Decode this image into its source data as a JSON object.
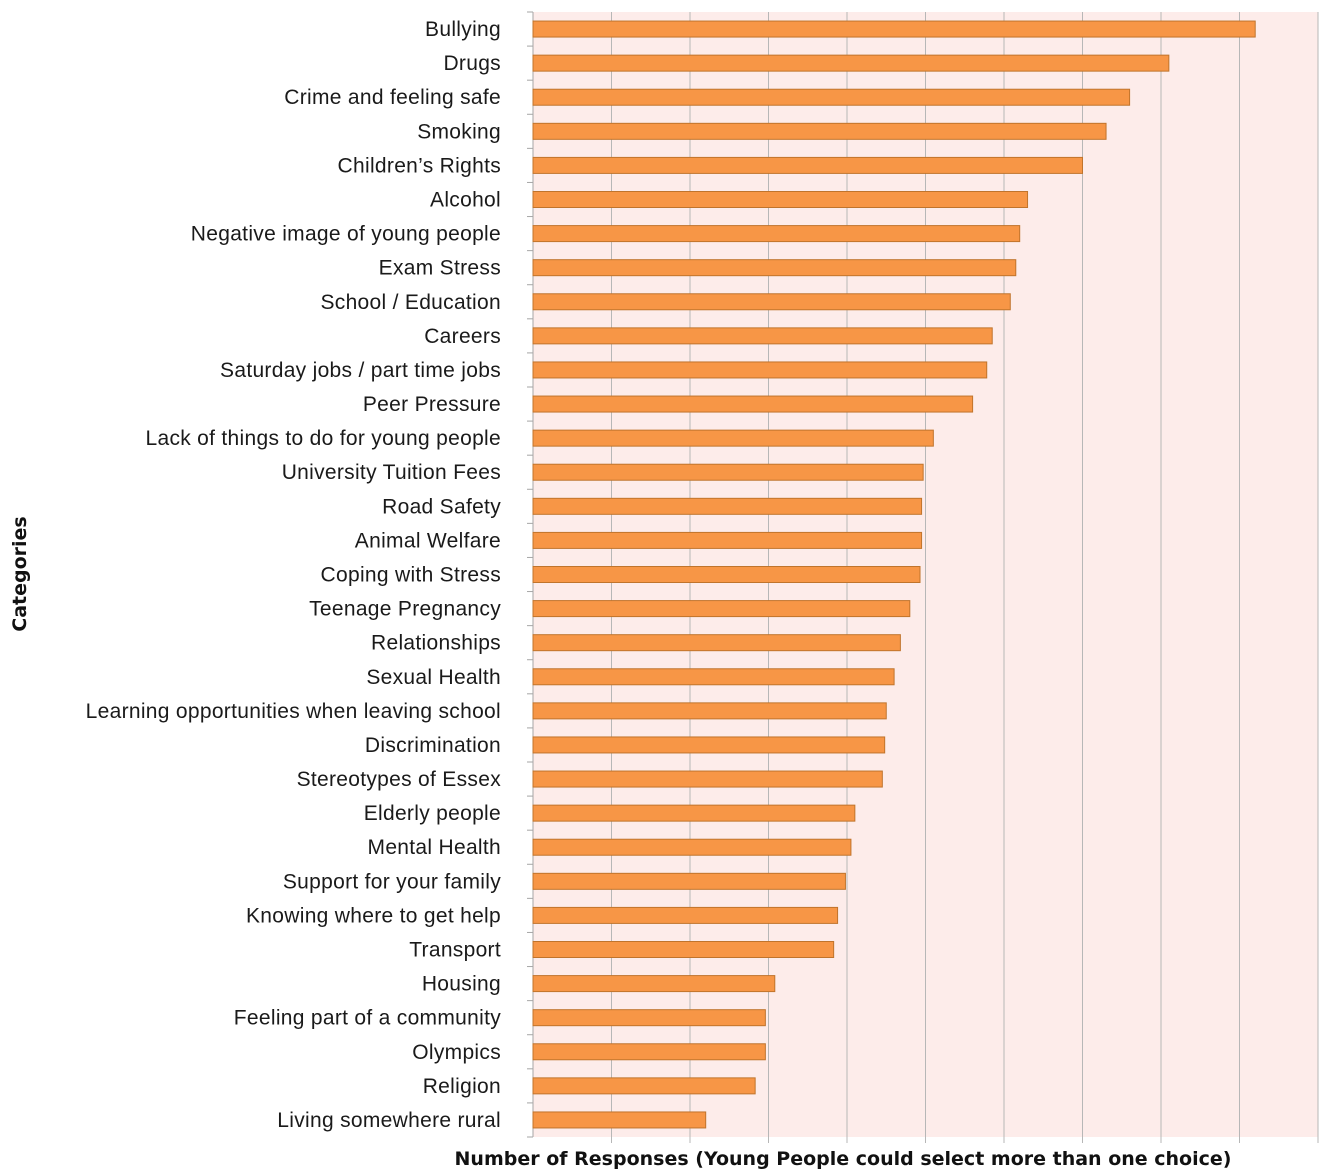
{
  "chart_data": {
    "type": "bar",
    "orientation": "horizontal",
    "xlabel": "Number of Responses (Young People could select more than one choice)",
    "ylabel": "Categories",
    "xlim": [
      0,
      100
    ],
    "grid": true,
    "bar_color": "#f79646",
    "bar_border_color": "#c0742c",
    "plot_background": "#fdecea",
    "categories": [
      "Bullying",
      "Drugs",
      "Crime and feeling safe",
      "Smoking",
      "Children’s Rights",
      "Alcohol",
      "Negative image of young people",
      "Exam Stress",
      "School / Education",
      "Careers",
      "Saturday jobs / part time jobs",
      "Peer Pressure",
      "Lack of things to do for young people",
      "University Tuition Fees",
      "Road Safety",
      "Animal Welfare",
      "Coping with Stress",
      "Teenage Pregnancy",
      "Relationships",
      "Sexual Health",
      "Learning opportunities when leaving school",
      "Discrimination",
      "Stereotypes of Essex",
      "Elderly people",
      "Mental Health",
      "Support for your family",
      "Knowing where to get help",
      "Transport",
      "Housing",
      "Feeling part of a community",
      "Olympics",
      "Religion",
      "Living somewhere rural"
    ],
    "values": [
      92,
      81,
      76,
      73,
      70,
      63,
      62,
      61.5,
      60.8,
      58.5,
      57.8,
      56,
      51,
      49.7,
      49.5,
      49.5,
      49.3,
      48,
      46.8,
      46,
      45,
      44.8,
      44.5,
      41,
      40.5,
      39.8,
      38.8,
      38.3,
      30.8,
      29.6,
      29.6,
      28.3,
      22
    ]
  }
}
